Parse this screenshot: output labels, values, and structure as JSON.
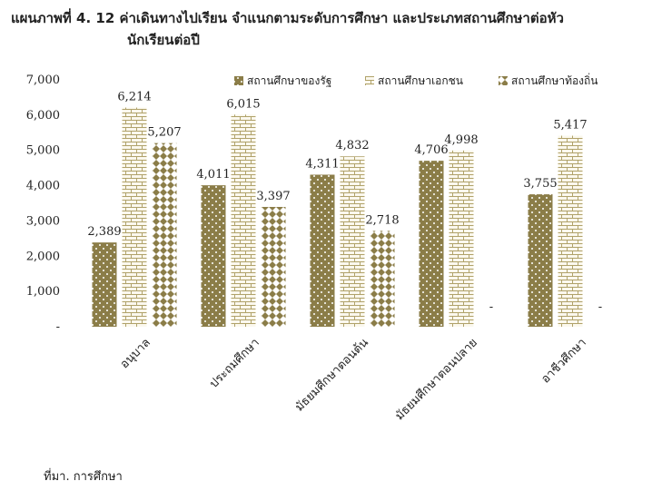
{
  "title": {
    "line1": "แผนภาพที่ 4. 12 ค่าเดินทางไปเรียน จำแนกตามระดับการศึกษา และประเภทสถานศึกษาต่อหัว",
    "line2": "นักเรียนต่อปี"
  },
  "source": "ที่มา. การศึกษา",
  "chart_data": {
    "type": "bar",
    "categories": [
      "อนุบาล",
      "ประถมศึกษา",
      "มัธยมศึกษาตอนต้น",
      "มัธยมศึกษาตอนปลาย",
      "อาชีวศึกษา"
    ],
    "series": [
      {
        "name": "สถานศึกษาของรัฐ",
        "values": [
          2389,
          4011,
          4311,
          4706,
          3755
        ],
        "labels": [
          "2,389",
          "4,011",
          "4,311",
          "4,706",
          "3,755"
        ],
        "color": "#8b7d48",
        "pattern": "dots"
      },
      {
        "name": "สถานศึกษาเอกชน",
        "values": [
          6214,
          6015,
          4832,
          4998,
          5417
        ],
        "labels": [
          "6,214",
          "6,015",
          "4,832",
          "4,998",
          "5,417"
        ],
        "color": "#a89a5c",
        "pattern": "bricks"
      },
      {
        "name": "สถานศึกษาท้องถิ่น",
        "values": [
          5207,
          3397,
          2718,
          0,
          0
        ],
        "labels": [
          "5,207",
          "3,397",
          "2,718",
          "-",
          "-"
        ],
        "color": "#8b7d48",
        "pattern": "diamonds"
      }
    ],
    "yticks": [
      "-",
      "1,000",
      "2,000",
      "3,000",
      "4,000",
      "5,000",
      "6,000",
      "7,000"
    ],
    "ylim": [
      0,
      7000
    ],
    "legend_position": "top-right",
    "grid": false
  }
}
